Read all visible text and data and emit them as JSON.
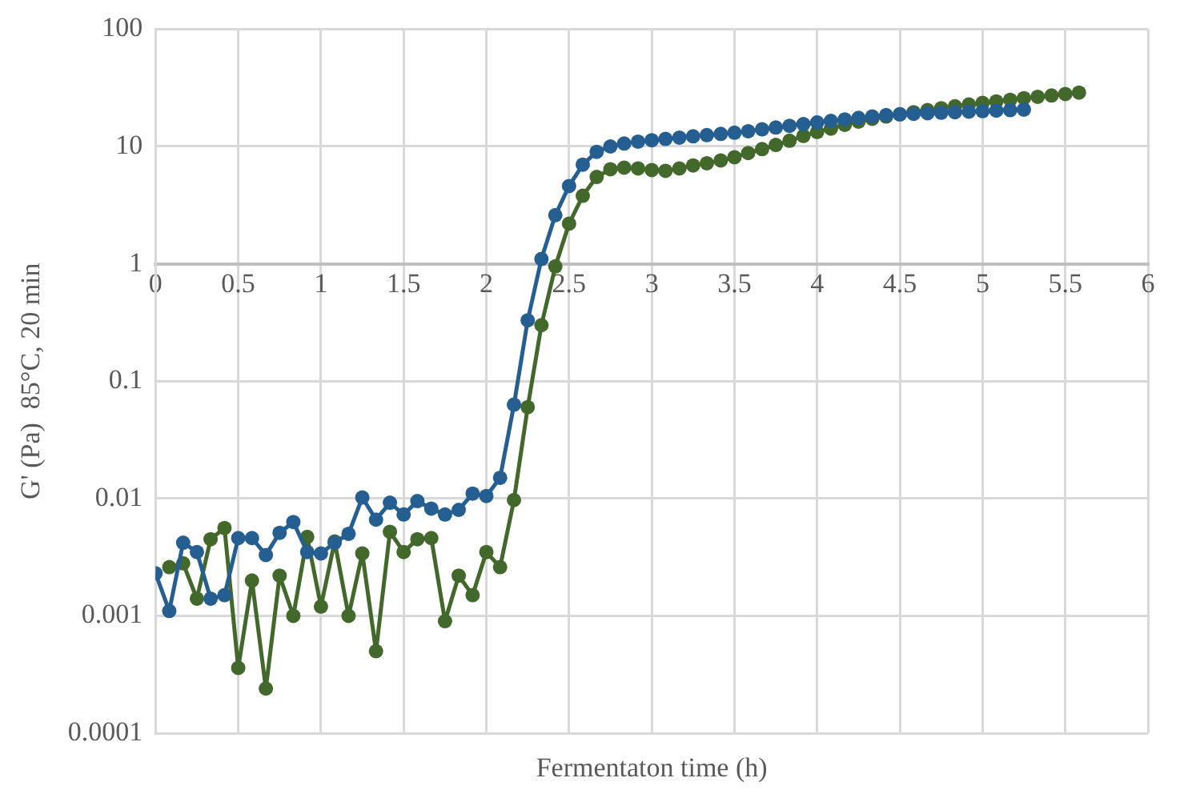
{
  "chart_data": {
    "type": "line",
    "xlabel": "Fermentaton time (h)",
    "ylabel": "G' (Pa)  85°C, 20 min",
    "log": "y",
    "grid": true,
    "legend": false,
    "marker": "circle",
    "line_style": "solid",
    "xlim": [
      0,
      6
    ],
    "xticks": [
      0,
      0.5,
      1,
      1.5,
      2,
      2.5,
      3,
      3.5,
      4,
      4.5,
      5,
      5.5,
      6
    ],
    "ylim": [
      0.0001,
      100
    ],
    "yticks": [
      0.0001,
      0.001,
      0.01,
      0.1,
      1,
      10,
      100
    ],
    "series": [
      {
        "color": "#255e91",
        "x": [
          0,
          0.083,
          0.167,
          0.25,
          0.333,
          0.417,
          0.5,
          0.583,
          0.667,
          0.75,
          0.833,
          0.917,
          1,
          1.083,
          1.167,
          1.25,
          1.333,
          1.417,
          1.5,
          1.583,
          1.667,
          1.75,
          1.833,
          1.917,
          2,
          2.083,
          2.167,
          2.25,
          2.333,
          2.417,
          2.5,
          2.583,
          2.667,
          2.75,
          2.833,
          2.917,
          3,
          3.083,
          3.167,
          3.25,
          3.333,
          3.417,
          3.5,
          3.583,
          3.667,
          3.75,
          3.833,
          3.917,
          4,
          4.083,
          4.167,
          4.25,
          4.333,
          4.417,
          4.5,
          4.583,
          4.667,
          4.75,
          4.833,
          4.917,
          5,
          5.083,
          5.167,
          5.25
        ],
        "values": [
          0.0023,
          0.0011,
          0.0042,
          0.0035,
          0.0014,
          0.0015,
          0.0046,
          0.0046,
          0.0033,
          0.0051,
          0.0063,
          0.0035,
          0.0034,
          0.0042,
          0.005,
          0.0102,
          0.0066,
          0.0092,
          0.0073,
          0.0095,
          0.0082,
          0.0073,
          0.008,
          0.011,
          0.0105,
          0.015,
          0.063,
          0.33,
          1.1,
          2.6,
          4.6,
          7,
          9,
          10,
          10.6,
          11,
          11.3,
          11.6,
          11.9,
          12.2,
          12.5,
          12.8,
          13.1,
          13.5,
          14,
          14.5,
          15,
          15.5,
          16,
          16.5,
          17,
          17.5,
          18,
          18.5,
          18.8,
          19,
          19.2,
          19.4,
          19.6,
          19.8,
          20,
          20.2,
          20.4,
          20.6
        ]
      },
      {
        "color": "#43682b",
        "x": [
          0.083,
          0.167,
          0.25,
          0.333,
          0.417,
          0.5,
          0.583,
          0.667,
          0.75,
          0.833,
          0.917,
          1,
          1.083,
          1.167,
          1.25,
          1.333,
          1.417,
          1.5,
          1.583,
          1.667,
          1.75,
          1.833,
          1.917,
          2,
          2.083,
          2.167,
          2.25,
          2.333,
          2.417,
          2.5,
          2.583,
          2.667,
          2.75,
          2.833,
          2.917,
          3,
          3.083,
          3.167,
          3.25,
          3.333,
          3.417,
          3.5,
          3.583,
          3.667,
          3.75,
          3.833,
          3.917,
          4,
          4.083,
          4.167,
          4.25,
          4.333,
          4.417,
          4.5,
          4.583,
          4.667,
          4.75,
          4.833,
          4.917,
          5,
          5.083,
          5.167,
          5.25,
          5.333,
          5.417,
          5.5,
          5.583
        ],
        "values": [
          0.0026,
          0.0028,
          0.0014,
          0.0045,
          0.0056,
          0.00036,
          0.002,
          0.00024,
          0.0022,
          0.001,
          0.0047,
          0.0012,
          0.0043,
          0.001,
          0.0034,
          0.0005,
          0.0052,
          0.0035,
          0.0045,
          0.0046,
          0.0009,
          0.0022,
          0.0015,
          0.0035,
          0.0026,
          0.0097,
          0.06,
          0.3,
          0.95,
          2.2,
          3.8,
          5.5,
          6.4,
          6.6,
          6.5,
          6.3,
          6.2,
          6.5,
          6.9,
          7.2,
          7.6,
          8.1,
          8.8,
          9.5,
          10.3,
          11.2,
          12.3,
          13.3,
          14.2,
          15.3,
          16.3,
          17.2,
          18,
          18.8,
          19.6,
          20.4,
          21.2,
          22,
          22.8,
          23.5,
          24.2,
          25,
          25.8,
          26.5,
          27.2,
          28,
          28.8
        ]
      }
    ]
  }
}
